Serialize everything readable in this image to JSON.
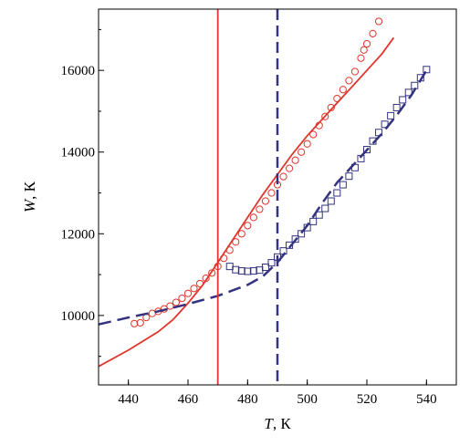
{
  "chart_data": {
    "type": "scatter",
    "title": "",
    "xlabel_var": "T",
    "xlabel_unit": ", К",
    "ylabel_var": "W",
    "ylabel_unit": ", К",
    "xlim": [
      430,
      550
    ],
    "ylim": [
      8300,
      17500
    ],
    "x_ticks": [
      440,
      460,
      480,
      500,
      520,
      540
    ],
    "y_ticks": [
      10000,
      12000,
      14000,
      16000
    ],
    "grid": false,
    "legend": "none",
    "colors": {
      "red": "#e0352b",
      "blue": "#33337f"
    },
    "series": [
      {
        "marker": "circle",
        "color": "#e0352b",
        "line": "none",
        "points": [
          [
            442,
            9800
          ],
          [
            444,
            9820
          ],
          [
            446,
            9950
          ],
          [
            448,
            10050
          ],
          [
            450,
            10100
          ],
          [
            452,
            10160
          ],
          [
            454,
            10230
          ],
          [
            456,
            10320
          ],
          [
            458,
            10420
          ],
          [
            460,
            10540
          ],
          [
            462,
            10660
          ],
          [
            464,
            10780
          ],
          [
            466,
            10910
          ],
          [
            468,
            11040
          ],
          [
            470,
            11200
          ],
          [
            472,
            11400
          ],
          [
            474,
            11600
          ],
          [
            476,
            11800
          ],
          [
            478,
            12000
          ],
          [
            480,
            12200
          ],
          [
            482,
            12400
          ],
          [
            484,
            12600
          ],
          [
            486,
            12800
          ],
          [
            488,
            13000
          ],
          [
            490,
            13200
          ],
          [
            492,
            13400
          ],
          [
            494,
            13600
          ],
          [
            496,
            13800
          ],
          [
            498,
            14000
          ],
          [
            500,
            14200
          ],
          [
            502,
            14430
          ],
          [
            504,
            14650
          ],
          [
            506,
            14870
          ],
          [
            508,
            15090
          ],
          [
            510,
            15310
          ],
          [
            512,
            15530
          ],
          [
            514,
            15750
          ],
          [
            516,
            15970
          ],
          [
            518,
            16300
          ],
          [
            519,
            16500
          ],
          [
            520,
            16650
          ],
          [
            522,
            16900
          ],
          [
            524,
            17200
          ]
        ]
      },
      {
        "marker": "square",
        "color": "#33337f",
        "line": "none",
        "points": [
          [
            474,
            11200
          ],
          [
            476,
            11120
          ],
          [
            478,
            11090
          ],
          [
            480,
            11080
          ],
          [
            482,
            11090
          ],
          [
            484,
            11110
          ],
          [
            486,
            11180
          ],
          [
            488,
            11290
          ],
          [
            490,
            11430
          ],
          [
            492,
            11580
          ],
          [
            494,
            11720
          ],
          [
            496,
            11870
          ],
          [
            498,
            12000
          ],
          [
            500,
            12150
          ],
          [
            502,
            12300
          ],
          [
            504,
            12460
          ],
          [
            506,
            12620
          ],
          [
            508,
            12800
          ],
          [
            510,
            13000
          ],
          [
            512,
            13200
          ],
          [
            514,
            13410
          ],
          [
            516,
            13620
          ],
          [
            518,
            13840
          ],
          [
            520,
            14060
          ],
          [
            522,
            14270
          ],
          [
            524,
            14480
          ],
          [
            526,
            14680
          ],
          [
            528,
            14890
          ],
          [
            530,
            15090
          ],
          [
            532,
            15280
          ],
          [
            534,
            15460
          ],
          [
            536,
            15630
          ],
          [
            538,
            15820
          ],
          [
            540,
            16020
          ]
        ]
      },
      {
        "marker": "none",
        "color": "#e0352b",
        "line": "solid",
        "points": [
          [
            430,
            8750
          ],
          [
            440,
            9150
          ],
          [
            450,
            9600
          ],
          [
            455,
            9900
          ],
          [
            460,
            10300
          ],
          [
            465,
            10750
          ],
          [
            470,
            11300
          ],
          [
            475,
            11850
          ],
          [
            480,
            12400
          ],
          [
            485,
            12950
          ],
          [
            490,
            13450
          ],
          [
            495,
            13950
          ],
          [
            500,
            14400
          ],
          [
            505,
            14800
          ],
          [
            510,
            15200
          ],
          [
            515,
            15600
          ],
          [
            520,
            16000
          ],
          [
            525,
            16400
          ],
          [
            529,
            16800
          ]
        ]
      },
      {
        "marker": "none",
        "color": "#33337f",
        "line": "dashed",
        "points": [
          [
            430,
            9780
          ],
          [
            440,
            9950
          ],
          [
            450,
            10100
          ],
          [
            460,
            10280
          ],
          [
            470,
            10480
          ],
          [
            480,
            10750
          ],
          [
            485,
            10950
          ],
          [
            490,
            11300
          ],
          [
            495,
            11750
          ],
          [
            500,
            12200
          ],
          [
            505,
            12750
          ],
          [
            510,
            13250
          ],
          [
            515,
            13650
          ],
          [
            520,
            14050
          ],
          [
            525,
            14450
          ],
          [
            530,
            14900
          ],
          [
            535,
            15400
          ],
          [
            540,
            16000
          ]
        ]
      },
      {
        "marker": "none",
        "color": "#e0352b",
        "line": "vertical-solid",
        "x": 470
      },
      {
        "marker": "none",
        "color": "#33337f",
        "line": "vertical-dashed",
        "x": 490
      }
    ]
  }
}
